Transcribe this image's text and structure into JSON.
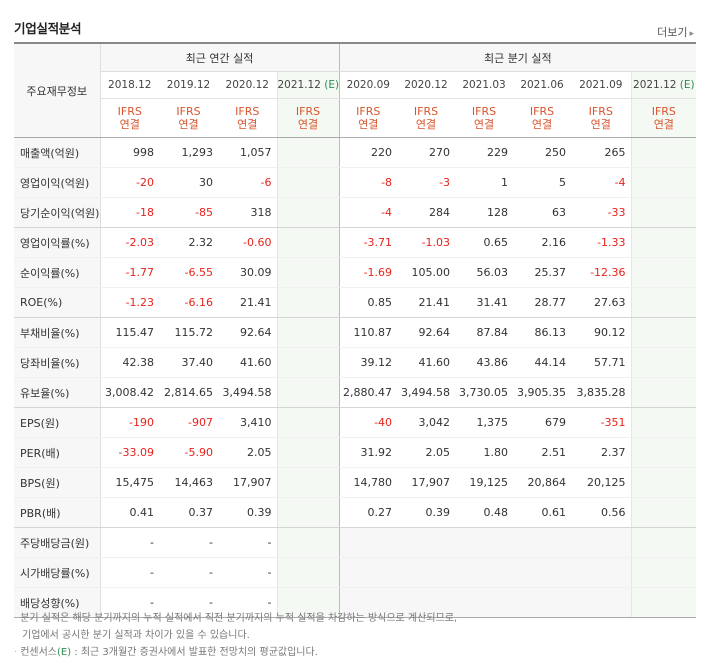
{
  "title": "기업실적분석",
  "more_label": "더보기",
  "label_header": "주요재무정보",
  "groups": {
    "annual": "최근 연간 실적",
    "quarterly": "최근 분기 실적"
  },
  "periods": [
    {
      "date": "2018.12",
      "est": ""
    },
    {
      "date": "2019.12",
      "est": ""
    },
    {
      "date": "2020.12",
      "est": ""
    },
    {
      "date": "2021.12",
      "est": "(E)"
    },
    {
      "date": "2020.09",
      "est": ""
    },
    {
      "date": "2020.12",
      "est": ""
    },
    {
      "date": "2021.03",
      "est": ""
    },
    {
      "date": "2021.06",
      "est": ""
    },
    {
      "date": "2021.09",
      "est": ""
    },
    {
      "date": "2021.12",
      "est": "(E)"
    }
  ],
  "ifrs": {
    "line1": "IFRS",
    "line2": "연결"
  },
  "rows": [
    {
      "label": "매출액(억원)",
      "values": [
        "998",
        "1,293",
        "1,057",
        "",
        "220",
        "270",
        "229",
        "250",
        "265",
        ""
      ]
    },
    {
      "label": "영업이익(억원)",
      "values": [
        "-20",
        "30",
        "-6",
        "",
        "-8",
        "-3",
        "1",
        "5",
        "-4",
        ""
      ]
    },
    {
      "label": "당기순이익(억원)",
      "values": [
        "-18",
        "-85",
        "318",
        "",
        "-4",
        "284",
        "128",
        "63",
        "-33",
        ""
      ]
    },
    {
      "label": "영업이익률(%)",
      "values": [
        "-2.03",
        "2.32",
        "-0.60",
        "",
        "-3.71",
        "-1.03",
        "0.65",
        "2.16",
        "-1.33",
        ""
      ]
    },
    {
      "label": "순이익률(%)",
      "values": [
        "-1.77",
        "-6.55",
        "30.09",
        "",
        "-1.69",
        "105.00",
        "56.03",
        "25.37",
        "-12.36",
        ""
      ]
    },
    {
      "label": "ROE(%)",
      "values": [
        "-1.23",
        "-6.16",
        "21.41",
        "",
        "0.85",
        "21.41",
        "31.41",
        "28.77",
        "27.63",
        ""
      ]
    },
    {
      "label": "부채비율(%)",
      "values": [
        "115.47",
        "115.72",
        "92.64",
        "",
        "110.87",
        "92.64",
        "87.84",
        "86.13",
        "90.12",
        ""
      ]
    },
    {
      "label": "당좌비율(%)",
      "values": [
        "42.38",
        "37.40",
        "41.60",
        "",
        "39.12",
        "41.60",
        "43.86",
        "44.14",
        "57.71",
        ""
      ]
    },
    {
      "label": "유보율(%)",
      "values": [
        "3,008.42",
        "2,814.65",
        "3,494.58",
        "",
        "2,880.47",
        "3,494.58",
        "3,730.05",
        "3,905.35",
        "3,835.28",
        ""
      ]
    },
    {
      "label": "EPS(원)",
      "values": [
        "-190",
        "-907",
        "3,410",
        "",
        "-40",
        "3,042",
        "1,375",
        "679",
        "-351",
        ""
      ]
    },
    {
      "label": "PER(배)",
      "values": [
        "-33.09",
        "-5.90",
        "2.05",
        "",
        "31.92",
        "2.05",
        "1.80",
        "2.51",
        "2.37",
        ""
      ]
    },
    {
      "label": "BPS(원)",
      "values": [
        "15,475",
        "14,463",
        "17,907",
        "",
        "14,780",
        "17,907",
        "19,125",
        "20,864",
        "20,125",
        ""
      ]
    },
    {
      "label": "PBR(배)",
      "values": [
        "0.41",
        "0.37",
        "0.39",
        "",
        "0.27",
        "0.39",
        "0.48",
        "0.61",
        "0.56",
        ""
      ]
    },
    {
      "label": "주당배당금(원)",
      "values": [
        "-",
        "-",
        "-",
        "",
        "",
        "",
        "",
        "",
        "",
        ""
      ]
    },
    {
      "label": "시가배당률(%)",
      "values": [
        "-",
        "-",
        "-",
        "",
        "",
        "",
        "",
        "",
        "",
        ""
      ]
    },
    {
      "label": "배당성향(%)",
      "values": [
        "-",
        "-",
        "-",
        "",
        "",
        "",
        "",
        "",
        "",
        ""
      ]
    }
  ],
  "notes": {
    "line1": "분기 실적은 해당 분기까지의 누적 실적에서 직전 분기까지의 누적 실적을 차감하는 방식으로 계산되므로,",
    "line2": "기업에서 공시한 분기 실적과 차이가 있을 수 있습니다.",
    "line3_prefix": "컨센서스",
    "line3_mark": "(E)",
    "line3_suffix": " : 최근 3개월간 증권사에서 발표한 전망치의 평균값입니다."
  },
  "colors": {
    "negative": "#e8221c",
    "ifrs": "#d9542c",
    "estimate_mark": "#2e8b57",
    "estimate_bg": "#f4f9f3"
  }
}
